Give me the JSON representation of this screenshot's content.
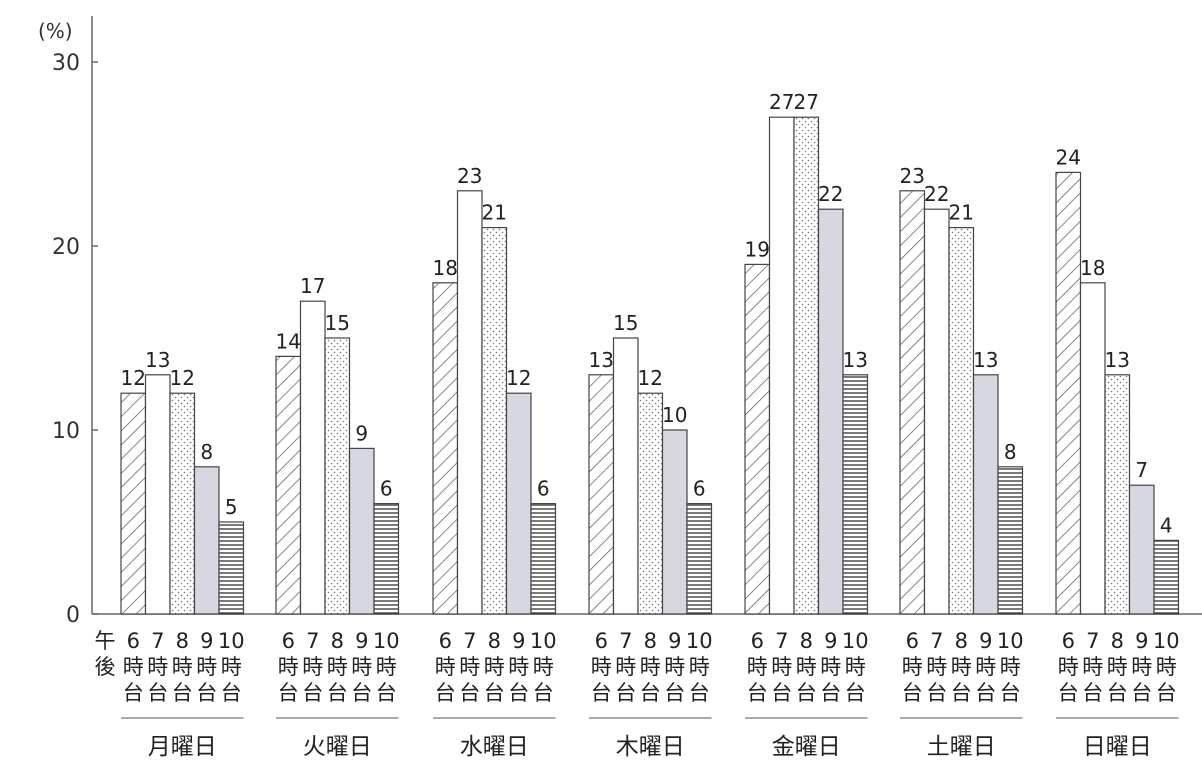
{
  "chart_data": {
    "type": "bar",
    "unit": "(%)",
    "y_ticks": [
      "0",
      "10",
      "20",
      "30"
    ],
    "ylim": [
      0,
      30
    ],
    "grid": false,
    "legend": "none",
    "time_prefix": [
      "午",
      "後"
    ],
    "bar_labels": [
      [
        "6",
        "時",
        "台"
      ],
      [
        "7",
        "時",
        "台"
      ],
      [
        "8",
        "時",
        "台"
      ],
      [
        "9",
        "時",
        "台"
      ],
      [
        "10",
        "時",
        "台"
      ]
    ],
    "categories": [
      "月曜日",
      "火曜日",
      "水曜日",
      "木曜日",
      "金曜日",
      "土曜日",
      "日曜日"
    ],
    "series": [
      {
        "key": "6",
        "values": [
          12,
          14,
          18,
          13,
          19,
          23,
          24
        ]
      },
      {
        "key": "7",
        "values": [
          13,
          17,
          23,
          15,
          27,
          22,
          18
        ]
      },
      {
        "key": "8",
        "values": [
          12,
          15,
          21,
          12,
          27,
          21,
          13
        ]
      },
      {
        "key": "9",
        "values": [
          8,
          9,
          12,
          10,
          22,
          13,
          7
        ]
      },
      {
        "key": "10",
        "values": [
          5,
          6,
          6,
          6,
          13,
          8,
          4
        ]
      }
    ],
    "series_styles": [
      "diagonal-hatch",
      "white",
      "dotted",
      "gray",
      "horizontal-lines"
    ]
  }
}
